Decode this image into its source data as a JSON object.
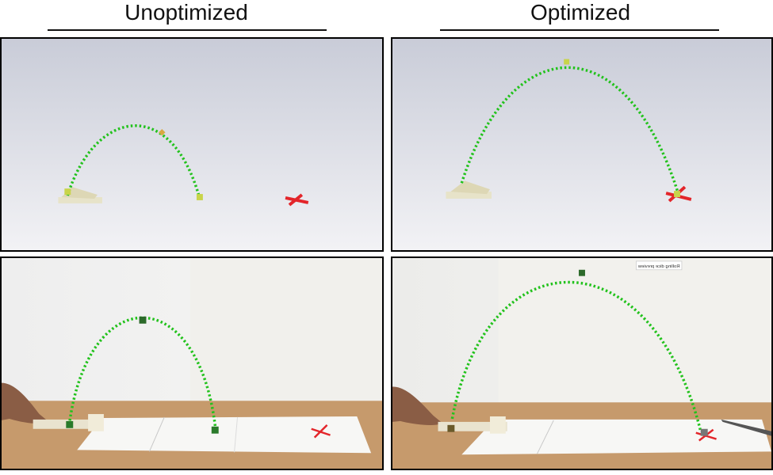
{
  "columns": [
    {
      "title": "Unoptimized"
    },
    {
      "title": "Optimized"
    }
  ],
  "overlay_note": "Rolling dice preview",
  "colors": {
    "trajectory": "#22c21c",
    "target_marker": "#e3252a",
    "studio_bg_top": "#c9ccd8",
    "studio_bg_bottom": "#f0f0f4",
    "table": "#c69a6c",
    "paper": "#f7f7f5"
  }
}
